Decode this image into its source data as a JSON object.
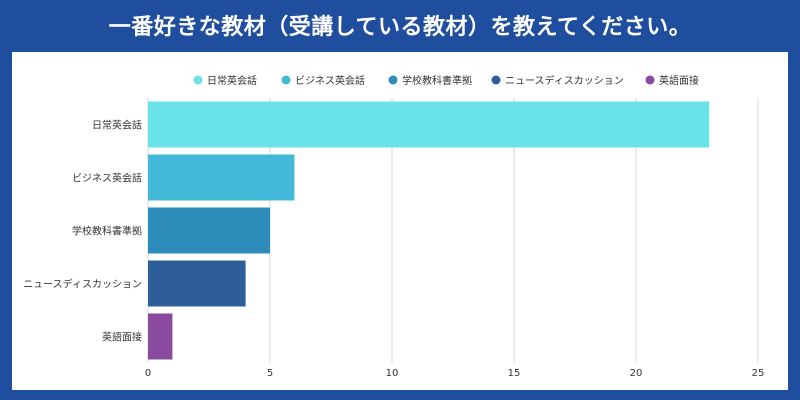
{
  "header": {
    "title": "一番好きな教材（受講している教材）を教えてください。"
  },
  "colors": {
    "frame": "#1f4e9e",
    "grid": "#d9d9d9",
    "text": "#333333"
  },
  "chart_data": {
    "type": "bar",
    "orientation": "horizontal",
    "title": "一番好きな教材（受講している教材）を教えてください。",
    "categories": [
      "日常英会話",
      "ビジネス英会話",
      "学校教科書準拠",
      "ニュースディスカッション",
      "英語面接"
    ],
    "values": [
      23,
      6,
      5,
      4,
      1
    ],
    "bar_colors": [
      "#6ae3e8",
      "#43b8d8",
      "#2d8cba",
      "#2d5e97",
      "#8a4aa0"
    ],
    "legend": {
      "position": "top",
      "entries": [
        "日常英会話",
        "ビジネス英会話",
        "学校教科書準拠",
        "ニュースディスカッション",
        "英語面接"
      ]
    },
    "xlim": [
      0,
      25
    ],
    "xticks": [
      0,
      5,
      10,
      15,
      20,
      25
    ],
    "grid": true,
    "xlabel": "",
    "ylabel": ""
  }
}
